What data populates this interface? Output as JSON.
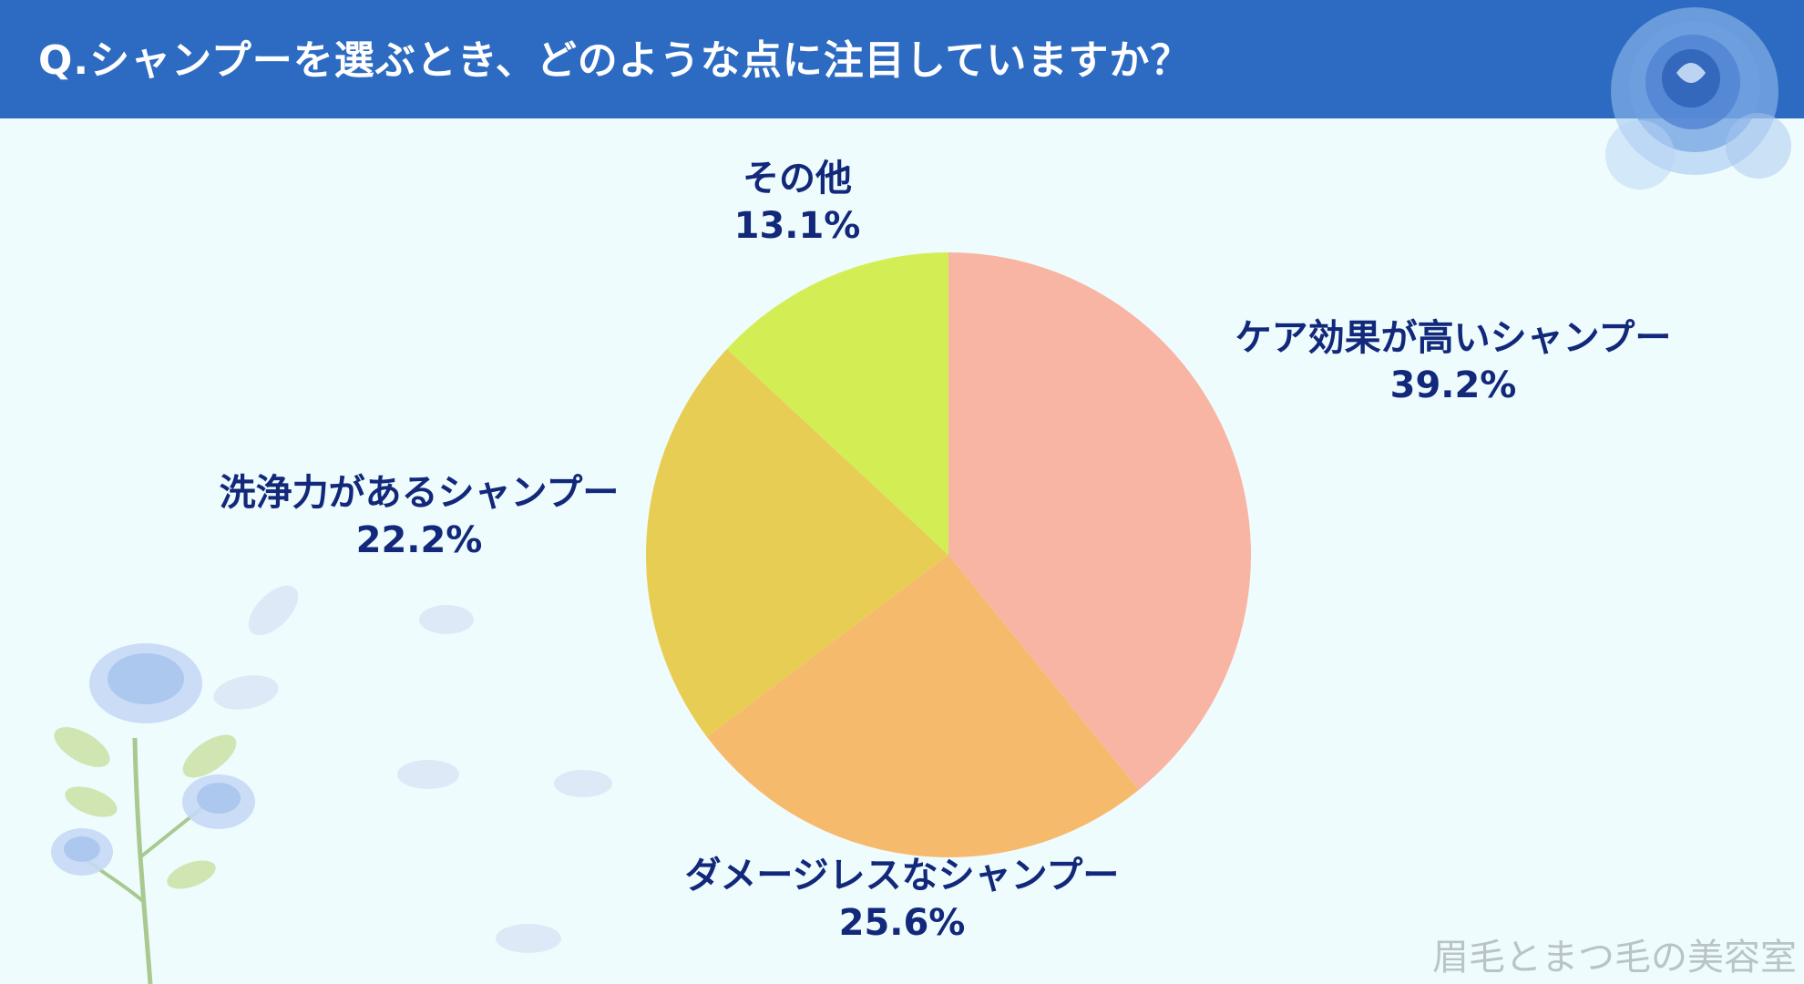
{
  "header": {
    "title": "Q.シャンプーを選ぶとき、どのような点に注目していますか？"
  },
  "colors": {
    "header_bg": "#2d6bc2",
    "background": "#effcfd",
    "label_text": "#12287a"
  },
  "chart_data": {
    "type": "pie",
    "title": "Q.シャンプーを選ぶとき、どのような点に注目していますか？",
    "slices": [
      {
        "label": "ケア効果が高いシャンプー",
        "value": 39.2,
        "display": "39.2%",
        "color": "#f9b5a3"
      },
      {
        "label": "ダメージレスなシャンプー",
        "value": 25.6,
        "display": "25.6%",
        "color": "#f6ba6d"
      },
      {
        "label": "洗浄力があるシャンプー",
        "value": 22.2,
        "display": "22.2%",
        "color": "#e8cd55"
      },
      {
        "label": "その他",
        "value": 13.1,
        "display": "13.1%",
        "color": "#d3ee55"
      }
    ],
    "start_angle": "12 o'clock",
    "direction": "clockwise",
    "legend": "none"
  },
  "watermark": "眉毛とまつ毛の美容室",
  "decorations": [
    "blue-rose-icon",
    "rose-branch-icon",
    "petal-icon"
  ]
}
